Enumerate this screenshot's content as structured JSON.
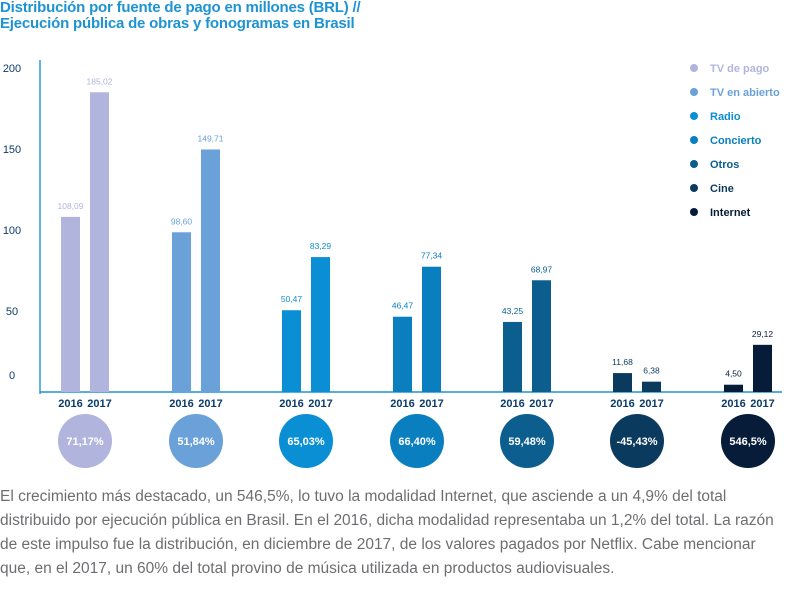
{
  "chart_data": {
    "type": "bar",
    "title_line1": "Distribución por fuente de pago en millones (BRL) //",
    "title_line2": "Ejecución pública de obras y fonogramas en Brasil",
    "y_ticks": [
      "200",
      "150",
      "100",
      "50",
      "0"
    ],
    "ylim": [
      0,
      200
    ],
    "grid": false,
    "legend_position": "top-right",
    "years": [
      "2016",
      "2017"
    ],
    "series": [
      {
        "name": "TV de pago",
        "color": "#b1b5de",
        "values": [
          108.09,
          185.02
        ],
        "value_labels": [
          "108,09",
          "185,02"
        ],
        "growth": "71,17%",
        "label_color": "#b1b5de"
      },
      {
        "name": "TV en abierto",
        "color": "#6aa1d9",
        "values": [
          98.6,
          149.71
        ],
        "value_labels": [
          "98,60",
          "149,71"
        ],
        "growth": "51,84%",
        "label_color": "#6aa1d9"
      },
      {
        "name": "Radio",
        "color": "#0b8fd4",
        "values": [
          50.47,
          83.29
        ],
        "value_labels": [
          "50,47",
          "83,29"
        ],
        "growth": "65,03%",
        "label_color": "#0b8fd4"
      },
      {
        "name": "Concierto",
        "color": "#0a7fc0",
        "values": [
          46.47,
          77.34
        ],
        "value_labels": [
          "46,47",
          "77,34"
        ],
        "growth": "66,40%",
        "label_color": "#0a7fc0"
      },
      {
        "name": "Otros",
        "color": "#0b5e8e",
        "values": [
          43.25,
          68.97
        ],
        "value_labels": [
          "43,25",
          "68,97"
        ],
        "growth": "59,48%",
        "label_color": "#0b5e8e"
      },
      {
        "name": "Cine",
        "color": "#0a3a5e",
        "values": [
          11.68,
          6.38
        ],
        "value_labels": [
          "11,68",
          "6,38"
        ],
        "growth": "-45,43%",
        "label_color": "#0a3a5e"
      },
      {
        "name": "Internet",
        "color": "#071c38",
        "values": [
          4.5,
          29.12
        ],
        "value_labels": [
          "4,50",
          "29,12"
        ],
        "growth": "546,5%",
        "label_color": "#071c38"
      }
    ]
  },
  "caption": "El crecimiento más destacado, un 546,5%, lo tuvo la modalidad Internet, que asciende a un 4,9% del total distribuido por ejecución pública en Brasil. En el 2016, dicha modalidad representaba un 1,2% del total. La razón de este impulso fue la distribución, en diciembre de 2017, de los valores pagados por Netflix. Cabe mencionar que, en el 2017, un 60% del total provino de música utilizada en productos audiovisuales.",
  "colors": {
    "title": "#1e93d2",
    "axis": "#1e93d2",
    "text": "#6d6e71",
    "year_label": "#0b3c6b"
  }
}
